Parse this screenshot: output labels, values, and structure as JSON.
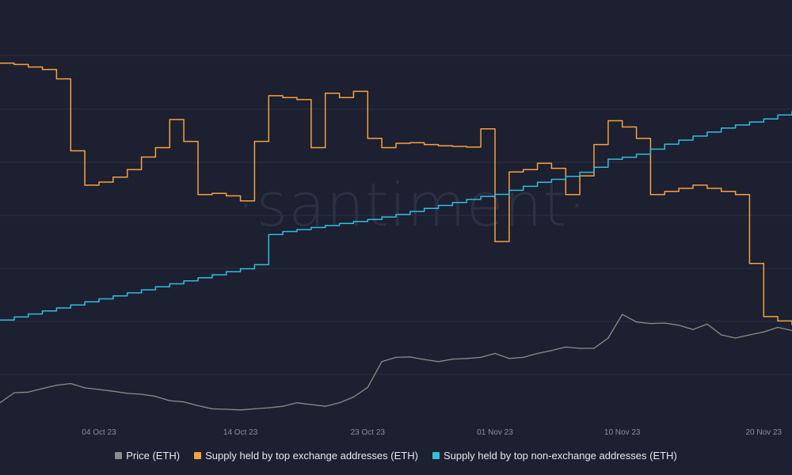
{
  "chart_data": {
    "type": "line",
    "watermark": "·santiment·",
    "x_axis": {
      "type": "date",
      "range": [
        "2023-09-27",
        "2023-11-22"
      ],
      "tick_labels": [
        {
          "date": "2023-10-04",
          "label": "04 Oct 23"
        },
        {
          "date": "2023-10-14",
          "label": "14 Oct 23"
        },
        {
          "date": "2023-10-23",
          "label": "23 Oct 23"
        },
        {
          "date": "2023-11-01",
          "label": "01 Nov 23"
        },
        {
          "date": "2023-11-10",
          "label": "10 Nov 23"
        },
        {
          "date": "2023-11-20",
          "label": "20 Nov 23"
        }
      ]
    },
    "grid": true,
    "legend_position": "bottom-center",
    "series": [
      {
        "name": "Price (ETH)",
        "color": "#8c8c8c",
        "step": false,
        "points": [
          [
            "2023-09-27",
            1578
          ],
          [
            "2023-09-28",
            1625
          ],
          [
            "2023-09-29",
            1628
          ],
          [
            "2023-09-30",
            1645
          ],
          [
            "2023-10-01",
            1660
          ],
          [
            "2023-10-02",
            1668
          ],
          [
            "2023-10-03",
            1648
          ],
          [
            "2023-10-04",
            1640
          ],
          [
            "2023-10-05",
            1632
          ],
          [
            "2023-10-06",
            1622
          ],
          [
            "2023-10-07",
            1618
          ],
          [
            "2023-10-08",
            1608
          ],
          [
            "2023-10-09",
            1588
          ],
          [
            "2023-10-10",
            1582
          ],
          [
            "2023-10-11",
            1565
          ],
          [
            "2023-10-12",
            1550
          ],
          [
            "2023-10-13",
            1548
          ],
          [
            "2023-10-14",
            1545
          ],
          [
            "2023-10-15",
            1550
          ],
          [
            "2023-10-16",
            1555
          ],
          [
            "2023-10-17",
            1562
          ],
          [
            "2023-10-18",
            1578
          ],
          [
            "2023-10-19",
            1570
          ],
          [
            "2023-10-20",
            1562
          ],
          [
            "2023-10-21",
            1578
          ],
          [
            "2023-10-22",
            1605
          ],
          [
            "2023-10-23",
            1650
          ],
          [
            "2023-10-24",
            1770
          ],
          [
            "2023-10-25",
            1790
          ],
          [
            "2023-10-26",
            1792
          ],
          [
            "2023-10-27",
            1780
          ],
          [
            "2023-10-28",
            1770
          ],
          [
            "2023-10-29",
            1782
          ],
          [
            "2023-10-30",
            1785
          ],
          [
            "2023-10-31",
            1790
          ],
          [
            "2023-11-01",
            1808
          ],
          [
            "2023-11-02",
            1785
          ],
          [
            "2023-11-03",
            1790
          ],
          [
            "2023-11-04",
            1808
          ],
          [
            "2023-11-05",
            1822
          ],
          [
            "2023-11-06",
            1838
          ],
          [
            "2023-11-07",
            1832
          ],
          [
            "2023-11-08",
            1832
          ],
          [
            "2023-11-09",
            1880
          ],
          [
            "2023-11-10",
            1990
          ],
          [
            "2023-11-11",
            1955
          ],
          [
            "2023-11-12",
            1948
          ],
          [
            "2023-11-13",
            1950
          ],
          [
            "2023-11-14",
            1940
          ],
          [
            "2023-11-15",
            1920
          ],
          [
            "2023-11-16",
            1945
          ],
          [
            "2023-11-17",
            1895
          ],
          [
            "2023-11-18",
            1880
          ],
          [
            "2023-11-19",
            1895
          ],
          [
            "2023-11-20",
            1908
          ],
          [
            "2023-11-21",
            1930
          ],
          [
            "2023-11-22",
            1915
          ]
        ]
      },
      {
        "name": "Supply held by top exchange addresses (ETH)",
        "color": "#f7a13b",
        "step": true,
        "points": [
          [
            "2023-09-27",
            13.3
          ],
          [
            "2023-09-28",
            13.28
          ],
          [
            "2023-09-29",
            13.24
          ],
          [
            "2023-09-30",
            13.2
          ],
          [
            "2023-10-01",
            13.05
          ],
          [
            "2023-10-02",
            11.9
          ],
          [
            "2023-10-03",
            11.35
          ],
          [
            "2023-10-04",
            11.4
          ],
          [
            "2023-10-05",
            11.48
          ],
          [
            "2023-10-06",
            11.6
          ],
          [
            "2023-10-07",
            11.8
          ],
          [
            "2023-10-08",
            11.95
          ],
          [
            "2023-10-09",
            12.4
          ],
          [
            "2023-10-10",
            12.05
          ],
          [
            "2023-10-11",
            11.2
          ],
          [
            "2023-10-12",
            11.22
          ],
          [
            "2023-10-13",
            11.18
          ],
          [
            "2023-10-14",
            11.1
          ],
          [
            "2023-10-15",
            12.05
          ],
          [
            "2023-10-16",
            12.78
          ],
          [
            "2023-10-17",
            12.75
          ],
          [
            "2023-10-18",
            12.72
          ],
          [
            "2023-10-19",
            11.95
          ],
          [
            "2023-10-20",
            12.82
          ],
          [
            "2023-10-21",
            12.75
          ],
          [
            "2023-10-22",
            12.85
          ],
          [
            "2023-10-23",
            12.1
          ],
          [
            "2023-10-24",
            11.95
          ],
          [
            "2023-10-25",
            12.02
          ],
          [
            "2023-10-26",
            12.03
          ],
          [
            "2023-10-27",
            12.0
          ],
          [
            "2023-10-28",
            11.98
          ],
          [
            "2023-10-29",
            11.97
          ],
          [
            "2023-10-30",
            11.96
          ],
          [
            "2023-10-31",
            12.25
          ],
          [
            "2023-11-01",
            10.45
          ],
          [
            "2023-11-02",
            11.56
          ],
          [
            "2023-11-03",
            11.6
          ],
          [
            "2023-11-04",
            11.7
          ],
          [
            "2023-11-05",
            11.62
          ],
          [
            "2023-11-06",
            11.2
          ],
          [
            "2023-11-07",
            11.5
          ],
          [
            "2023-11-08",
            12.0
          ],
          [
            "2023-11-09",
            12.38
          ],
          [
            "2023-11-10",
            12.28
          ],
          [
            "2023-11-11",
            12.1
          ],
          [
            "2023-11-12",
            11.2
          ],
          [
            "2023-11-13",
            11.25
          ],
          [
            "2023-11-14",
            11.3
          ],
          [
            "2023-11-15",
            11.35
          ],
          [
            "2023-11-16",
            11.3
          ],
          [
            "2023-11-17",
            11.25
          ],
          [
            "2023-11-18",
            11.2
          ],
          [
            "2023-11-19",
            10.1
          ],
          [
            "2023-11-20",
            9.25
          ],
          [
            "2023-11-21",
            9.18
          ],
          [
            "2023-11-22",
            9.12
          ]
        ]
      },
      {
        "name": "Supply held by top non-exchange addresses (ETH)",
        "color": "#2fbfdb",
        "step": true,
        "points": [
          [
            "2023-09-27",
            8.8
          ],
          [
            "2023-09-28",
            8.86
          ],
          [
            "2023-09-29",
            8.92
          ],
          [
            "2023-09-30",
            8.98
          ],
          [
            "2023-10-01",
            9.04
          ],
          [
            "2023-10-02",
            9.1
          ],
          [
            "2023-10-03",
            9.16
          ],
          [
            "2023-10-04",
            9.22
          ],
          [
            "2023-10-05",
            9.28
          ],
          [
            "2023-10-06",
            9.34
          ],
          [
            "2023-10-07",
            9.4
          ],
          [
            "2023-10-08",
            9.46
          ],
          [
            "2023-10-09",
            9.52
          ],
          [
            "2023-10-10",
            9.58
          ],
          [
            "2023-10-11",
            9.64
          ],
          [
            "2023-10-12",
            9.7
          ],
          [
            "2023-10-13",
            9.76
          ],
          [
            "2023-10-14",
            9.82
          ],
          [
            "2023-10-15",
            9.9
          ],
          [
            "2023-10-16",
            10.5
          ],
          [
            "2023-10-17",
            10.56
          ],
          [
            "2023-10-18",
            10.6
          ],
          [
            "2023-10-19",
            10.64
          ],
          [
            "2023-10-20",
            10.68
          ],
          [
            "2023-10-21",
            10.72
          ],
          [
            "2023-10-22",
            10.76
          ],
          [
            "2023-10-23",
            10.8
          ],
          [
            "2023-10-24",
            10.85
          ],
          [
            "2023-10-25",
            10.9
          ],
          [
            "2023-10-26",
            10.96
          ],
          [
            "2023-10-27",
            11.02
          ],
          [
            "2023-10-28",
            11.08
          ],
          [
            "2023-10-29",
            11.14
          ],
          [
            "2023-10-30",
            11.2
          ],
          [
            "2023-10-31",
            11.26
          ],
          [
            "2023-11-01",
            11.3
          ],
          [
            "2023-11-02",
            11.38
          ],
          [
            "2023-11-03",
            11.46
          ],
          [
            "2023-11-04",
            11.54
          ],
          [
            "2023-11-05",
            11.6
          ],
          [
            "2023-11-06",
            11.66
          ],
          [
            "2023-11-07",
            11.74
          ],
          [
            "2023-11-08",
            11.84
          ],
          [
            "2023-11-09",
            12.0
          ],
          [
            "2023-11-10",
            12.04
          ],
          [
            "2023-11-11",
            12.1
          ],
          [
            "2023-11-12",
            12.2
          ],
          [
            "2023-11-13",
            12.3
          ],
          [
            "2023-11-14",
            12.38
          ],
          [
            "2023-11-15",
            12.46
          ],
          [
            "2023-11-16",
            12.54
          ],
          [
            "2023-11-17",
            12.62
          ],
          [
            "2023-11-18",
            12.68
          ],
          [
            "2023-11-19",
            12.74
          ],
          [
            "2023-11-20",
            12.8
          ],
          [
            "2023-11-21",
            12.88
          ],
          [
            "2023-11-22",
            12.95
          ]
        ]
      }
    ]
  }
}
